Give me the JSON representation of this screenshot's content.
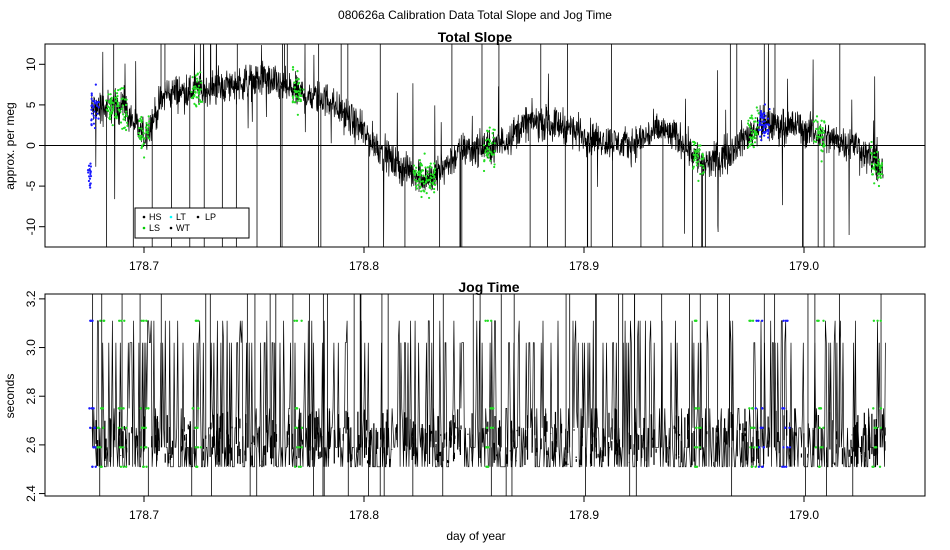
{
  "main_title": "080626a   Calibration Data Total Slope and Jog Time",
  "colors": {
    "trace": "#000000",
    "HS": "#000000",
    "LS": "#00cc00",
    "LT": "#00ffff",
    "WT": "#000000",
    "LP": "#000000",
    "cal_green": "#22dd22",
    "cal_blue": "#1a1aff"
  },
  "chart_data": [
    {
      "type": "line",
      "title": "Total Slope",
      "xlabel": "",
      "ylabel": "approx. per meg",
      "xlim": [
        178.655,
        179.055
      ],
      "ylim": [
        -12.5,
        12.5
      ],
      "xticks": [
        178.7,
        178.8,
        178.9,
        179.0
      ],
      "xtick_labels": [
        "178.7",
        "178.8",
        "178.9",
        "179.0"
      ],
      "yticks": [
        -10,
        -5,
        0,
        5,
        10
      ],
      "ytick_labels": [
        "-10",
        "-5",
        "0",
        "5",
        "10"
      ],
      "hline": 0,
      "legend": {
        "placement": "bottom-left",
        "entries": [
          {
            "label": "HS",
            "color": "#000000"
          },
          {
            "label": "LT",
            "color": "#00ffff"
          },
          {
            "label": "LP",
            "color": "#000000"
          },
          {
            "label": "LS",
            "color": "#00cc00"
          },
          {
            "label": "WT",
            "color": "#000000"
          }
        ]
      },
      "trend": {
        "x": [
          178.676,
          178.69,
          178.7,
          178.71,
          178.725,
          178.74,
          178.755,
          178.77,
          178.785,
          178.8,
          178.815,
          178.83,
          178.845,
          178.86,
          178.875,
          178.89,
          178.905,
          178.92,
          178.935,
          178.945,
          178.955,
          178.965,
          178.98,
          178.995,
          179.01,
          179.025,
          179.036
        ],
        "y": [
          4.5,
          5.0,
          1.0,
          6.5,
          6.8,
          7.5,
          8.2,
          6.5,
          5.5,
          1.5,
          -2.5,
          -4.2,
          -0.5,
          -0.2,
          3.0,
          2.5,
          0.8,
          0.0,
          2.0,
          0.5,
          -2.5,
          -1.0,
          2.5,
          2.5,
          1.0,
          0.0,
          -3.5
        ]
      },
      "calibration_markers": {
        "green_x": [
          178.685,
          178.69,
          178.7,
          178.724,
          178.77,
          178.825,
          178.83,
          178.857,
          178.952,
          178.977,
          179.007,
          179.033
        ],
        "blue_x": [
          178.677,
          178.982
        ]
      }
    },
    {
      "type": "line",
      "title": "Jog Time",
      "xlabel": "day of year",
      "ylabel": "seconds",
      "xlim": [
        178.655,
        179.055
      ],
      "ylim": [
        2.39,
        3.22
      ],
      "xticks": [
        178.7,
        178.8,
        178.9,
        179.0
      ],
      "xtick_labels": [
        "178.7",
        "178.8",
        "178.9",
        "179.0"
      ],
      "yticks": [
        2.4,
        2.6,
        2.8,
        3.0,
        3.2
      ],
      "ytick_labels": [
        "2.4",
        "2.6",
        "2.8",
        "3.0",
        "3.2"
      ],
      "levels": [
        2.51,
        2.59,
        2.67,
        2.75,
        3.02,
        3.11
      ],
      "x_range": [
        178.676,
        179.037
      ],
      "calibration_markers": {
        "green_x": [
          178.68,
          178.69,
          178.7,
          178.724,
          178.77,
          178.857,
          178.952,
          178.977,
          179.007,
          179.033
        ],
        "blue_x": [
          178.677,
          178.98,
          178.992
        ]
      }
    }
  ]
}
